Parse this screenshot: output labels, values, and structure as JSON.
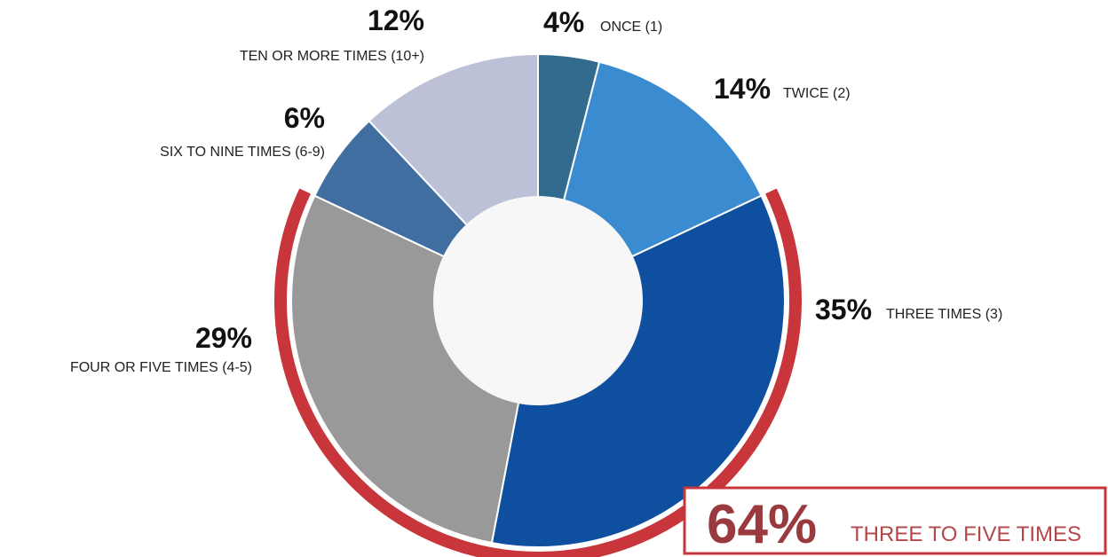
{
  "chart_data": {
    "type": "pie",
    "slices": [
      {
        "pct_label": "4%",
        "label": "ONCE (1)",
        "value": 4,
        "color": "#336b8f"
      },
      {
        "pct_label": "14%",
        "label": "TWICE (2)",
        "value": 14,
        "color": "#3b8bd0"
      },
      {
        "pct_label": "35%",
        "label": "THREE TIMES (3)",
        "value": 35,
        "color": "#0f4f9f"
      },
      {
        "pct_label": "29%",
        "label": "FOUR OR FIVE TIMES (4-5)",
        "value": 29,
        "color": "#999999"
      },
      {
        "pct_label": "6%",
        "label": "SIX TO NINE TIMES (6-9)",
        "value": 6,
        "color": "#416ea1"
      },
      {
        "pct_label": "12%",
        "label": "TEN OR MORE TIMES (10+)",
        "value": 12,
        "color": "#bcc1d8"
      }
    ],
    "highlight": {
      "pct_label": "64%",
      "label": "THREE TO FIVE TIMES",
      "value": 64,
      "color": "#c8353a"
    }
  }
}
